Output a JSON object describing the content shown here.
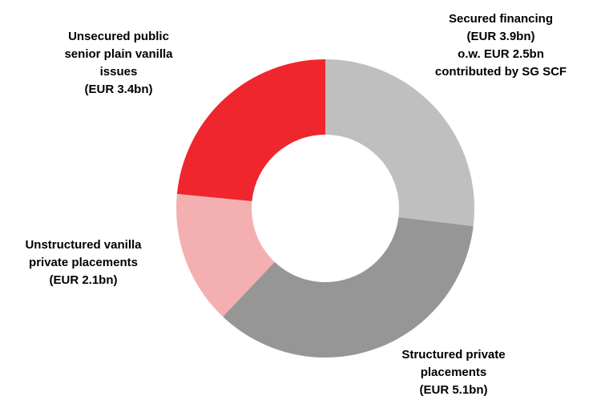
{
  "chart_data": {
    "type": "pie",
    "variant": "donut",
    "slices": [
      {
        "label": [
          "Secured financing",
          "(EUR 3.9bn)",
          "o.w. EUR 2.5bn",
          "contributed by SG SCF"
        ],
        "value": 3.9,
        "color": "#bfbfbf"
      },
      {
        "label": [
          "Structured private",
          "placements",
          "(EUR 5.1bn)"
        ],
        "value": 5.1,
        "color": "#969696"
      },
      {
        "label": [
          "Unstructured vanilla",
          "private placements",
          "(EUR 2.1bn)"
        ],
        "value": 2.1,
        "color": "#f4b0b0"
      },
      {
        "label": [
          "Unsecured public",
          "senior plain vanilla",
          "issues",
          "(EUR 3.4bn)"
        ],
        "value": 3.4,
        "color": "#ef262d"
      }
    ],
    "start_position": "12 o'clock",
    "direction": "clockwise",
    "legend": "none"
  }
}
